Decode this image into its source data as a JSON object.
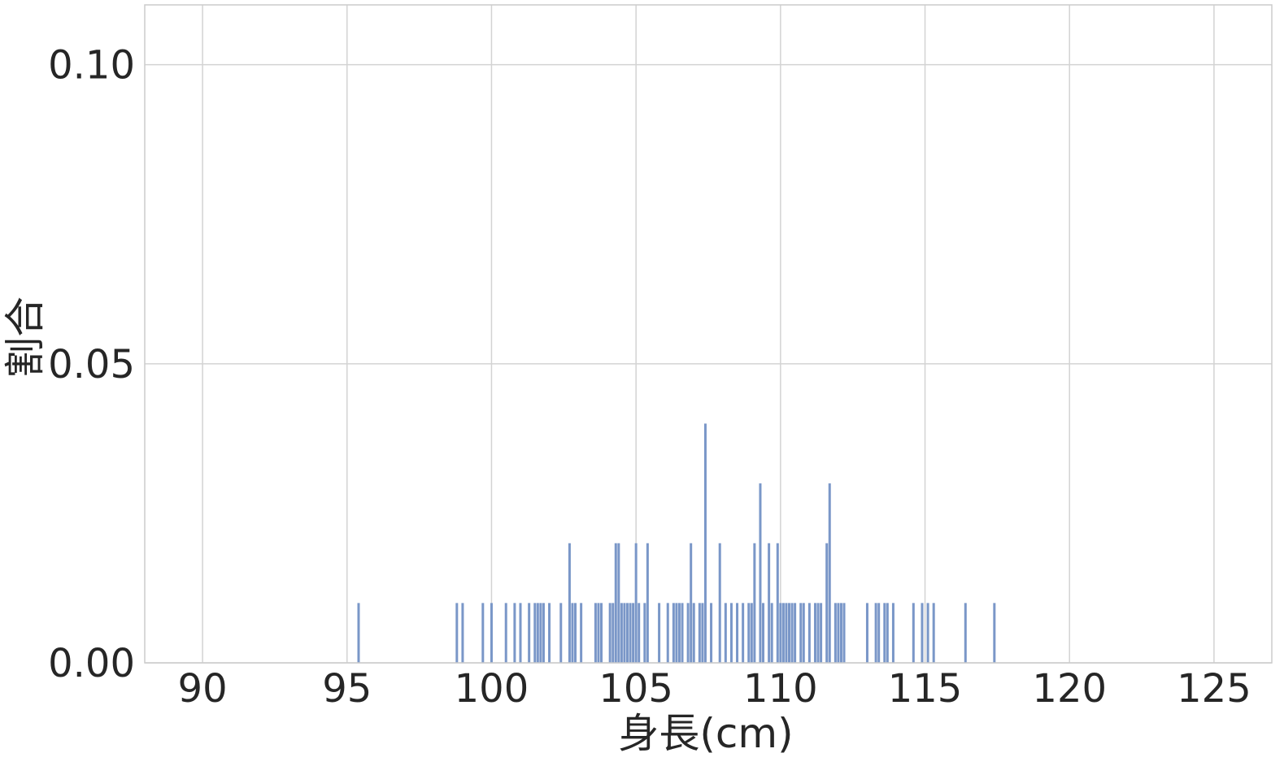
{
  "chart_data": {
    "type": "bar",
    "xlabel": "身長(cm)",
    "ylabel": "割合",
    "xlim": [
      88.0,
      127.0
    ],
    "ylim": [
      0.0,
      0.11
    ],
    "xticks": [
      90,
      95,
      100,
      105,
      110,
      115,
      120,
      125
    ],
    "xtick_labels": [
      "90",
      "95",
      "100",
      "105",
      "110",
      "115",
      "120",
      "125"
    ],
    "yticks": [
      0.0,
      0.05,
      0.1
    ],
    "ytick_labels": [
      "0.00",
      "0.05",
      "0.10"
    ],
    "grid": true,
    "bar_color": "#7a97c8",
    "x": [
      95.4,
      98.8,
      99.0,
      99.7,
      100.0,
      100.5,
      100.8,
      101.0,
      101.3,
      101.5,
      101.6,
      101.7,
      101.8,
      102.0,
      102.4,
      102.7,
      102.8,
      102.9,
      103.1,
      103.6,
      103.7,
      103.8,
      104.1,
      104.2,
      104.3,
      104.4,
      104.5,
      104.6,
      104.7,
      104.8,
      104.9,
      105.0,
      105.1,
      105.3,
      105.4,
      105.8,
      106.1,
      106.3,
      106.4,
      106.5,
      106.6,
      106.8,
      106.9,
      107.0,
      107.2,
      107.3,
      107.4,
      107.6,
      107.9,
      108.1,
      108.3,
      108.5,
      108.7,
      108.9,
      109.0,
      109.1,
      109.3,
      109.4,
      109.6,
      109.7,
      109.9,
      110.0,
      110.1,
      110.2,
      110.3,
      110.4,
      110.5,
      110.7,
      110.8,
      111.0,
      111.2,
      111.3,
      111.4,
      111.6,
      111.7,
      111.9,
      112.0,
      112.1,
      112.2,
      113.0,
      113.3,
      113.4,
      113.6,
      113.7,
      113.9,
      114.6,
      114.9,
      115.1,
      115.3,
      116.4,
      117.4
    ],
    "values": [
      0.01,
      0.01,
      0.01,
      0.01,
      0.01,
      0.01,
      0.01,
      0.01,
      0.01,
      0.01,
      0.01,
      0.01,
      0.01,
      0.01,
      0.01,
      0.02,
      0.01,
      0.01,
      0.01,
      0.01,
      0.01,
      0.01,
      0.01,
      0.01,
      0.02,
      0.02,
      0.01,
      0.01,
      0.01,
      0.01,
      0.01,
      0.02,
      0.01,
      0.01,
      0.02,
      0.01,
      0.01,
      0.01,
      0.01,
      0.01,
      0.01,
      0.01,
      0.02,
      0.01,
      0.01,
      0.01,
      0.04,
      0.01,
      0.02,
      0.01,
      0.01,
      0.01,
      0.01,
      0.01,
      0.01,
      0.02,
      0.03,
      0.01,
      0.02,
      0.01,
      0.02,
      0.01,
      0.01,
      0.01,
      0.01,
      0.01,
      0.01,
      0.01,
      0.01,
      0.01,
      0.01,
      0.01,
      0.01,
      0.02,
      0.03,
      0.01,
      0.01,
      0.01,
      0.01,
      0.01,
      0.01,
      0.01,
      0.01,
      0.01,
      0.01,
      0.01,
      0.01,
      0.01,
      0.01,
      0.01,
      0.01
    ]
  }
}
